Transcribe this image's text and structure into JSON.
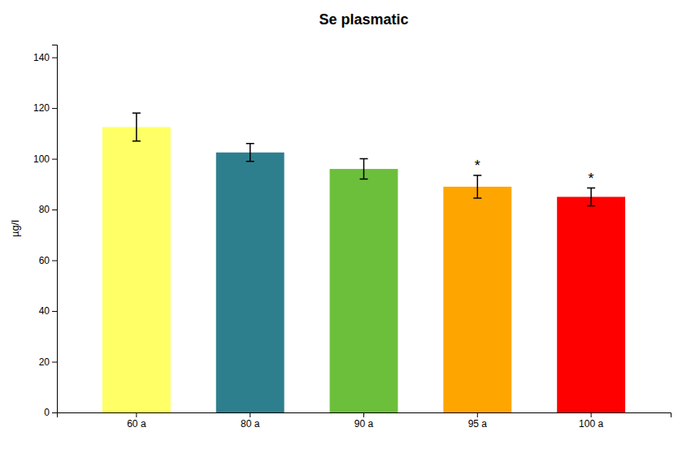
{
  "chart_data": {
    "type": "bar",
    "title": "Se plasmatic",
    "categories": [
      "60 a",
      "80 a",
      "90 a",
      "95 a",
      "100 a"
    ],
    "values": [
      112.5,
      102.5,
      96.0,
      89.0,
      85.0
    ],
    "errors": [
      5.5,
      3.5,
      4.0,
      4.5,
      3.5
    ],
    "colors": [
      "#FFFF66",
      "#2E7F8E",
      "#6CBF3A",
      "#FFA500",
      "#FF0000"
    ],
    "ylabel": "µg/l",
    "ylim": [
      0,
      145
    ],
    "yticks": [
      0,
      20,
      40,
      60,
      80,
      100,
      120,
      140
    ],
    "grid": false,
    "annotations": [
      {
        "category": "95 a",
        "text": "*"
      },
      {
        "category": "100 a",
        "text": "*"
      }
    ]
  }
}
